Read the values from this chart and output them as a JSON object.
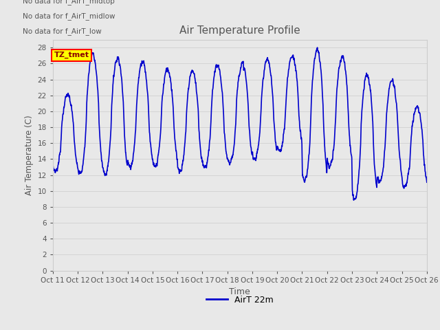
{
  "title": "Air Temperature Profile",
  "xlabel": "Time",
  "ylabel": "Air Temperature (C)",
  "ylim": [
    0,
    29
  ],
  "yticks": [
    0,
    2,
    4,
    6,
    8,
    10,
    12,
    14,
    16,
    18,
    20,
    22,
    24,
    26,
    28
  ],
  "line_color": "#0000cc",
  "line_width": 1.2,
  "legend_label": "AirT 22m",
  "text_annotations": [
    "No data for f_AirT_low",
    "No data for f_AirT_midlow",
    "No data for f_AirT_midtop"
  ],
  "annotation_box_label": "TZ_tmet",
  "x_tick_labels": [
    "Oct 11",
    "Oct 12",
    "Oct 13",
    "Oct 14",
    "Oct 15",
    "Oct 16",
    "Oct 17",
    "Oct 18",
    "Oct 19",
    "Oct 20",
    "Oct 21",
    "Oct 22",
    "Oct 23",
    "Oct 24",
    "Oct 25",
    "Oct 26"
  ],
  "background_color": "#e8e8e8",
  "plot_bg_color": "#e8e8e8",
  "figsize": [
    6.4,
    4.8
  ],
  "dpi": 100
}
